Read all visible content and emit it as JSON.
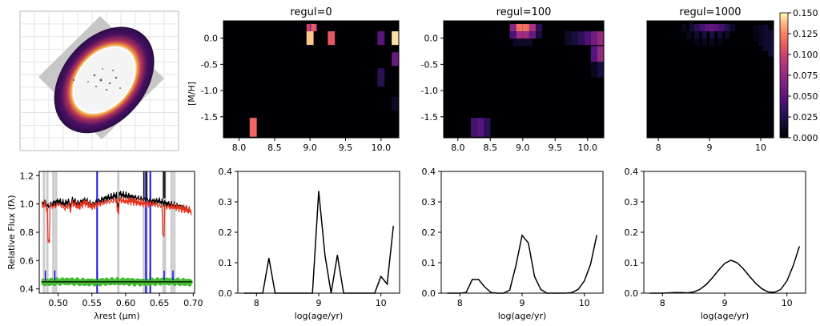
{
  "colors": {
    "sky": "#c9c9c9",
    "galaxy": "#ffffff",
    "ring_outer": "#2a0d45",
    "ring_mid": "#b1325a",
    "ring_inner": "#f6a23b",
    "data": "#000000",
    "model": "#e8321e",
    "residual": "#44bb33",
    "masked": "#1a12e0",
    "mask_band": "#cccccc"
  },
  "chart_data": [
    {
      "type": "image",
      "panel": "galaxy-image",
      "grid": true,
      "grid_lines": 11
    },
    {
      "type": "heatmap",
      "panel": "weights-regul-0",
      "title": "regul=0",
      "ylabel": "[M/H]",
      "xlim": [
        7.78,
        10.25
      ],
      "ylim": [
        -1.9,
        0.33
      ],
      "xticks": [
        "8.0",
        "8.5",
        "9.0",
        "9.5",
        "10.0"
      ],
      "yticks": [
        "0.0",
        "-0.5",
        "-1.0",
        "-1.5"
      ],
      "cells": [
        {
          "x": 9.0,
          "y": 0.2,
          "w": 0.1,
          "h": 0.14,
          "v": 0.095
        },
        {
          "x": 9.05,
          "y": 0.2,
          "w": 0.1,
          "h": 0.14,
          "v": 0.06
        },
        {
          "x": 9.05,
          "y": 0.2,
          "w": 0.07,
          "h": 0.14,
          "v": 0.112
        },
        {
          "x": 9.0,
          "y": 0.0,
          "w": 0.1,
          "h": 0.26,
          "v": 0.14
        },
        {
          "x": 9.3,
          "y": 0.0,
          "w": 0.1,
          "h": 0.26,
          "v": 0.11
        },
        {
          "x": 10.0,
          "y": 0.0,
          "w": 0.1,
          "h": 0.26,
          "v": 0.05
        },
        {
          "x": 10.2,
          "y": 0.0,
          "w": 0.1,
          "h": 0.26,
          "v": 0.145
        },
        {
          "x": 10.2,
          "y": -0.4,
          "w": 0.1,
          "h": 0.26,
          "v": 0.055
        },
        {
          "x": 10.0,
          "y": -0.75,
          "w": 0.1,
          "h": 0.35,
          "v": 0.028
        },
        {
          "x": 10.2,
          "y": -1.25,
          "w": 0.1,
          "h": 0.26,
          "v": 0.012
        },
        {
          "x": 8.2,
          "y": -1.7,
          "w": 0.1,
          "h": 0.36,
          "v": 0.115
        }
      ]
    },
    {
      "type": "heatmap",
      "panel": "weights-regul-100",
      "title": "regul=100",
      "xlim": [
        7.78,
        10.25
      ],
      "ylim": [
        -1.9,
        0.33
      ],
      "xticks": [
        "8.0",
        "8.5",
        "9.0",
        "9.5",
        "10.0"
      ],
      "yticks": [
        "0.0",
        "-0.5",
        "-1.0",
        "-1.5"
      ],
      "cells": [
        {
          "x": 8.85,
          "y": 0.2,
          "w": 0.1,
          "h": 0.14,
          "v": 0.07
        },
        {
          "x": 8.95,
          "y": 0.2,
          "w": 0.1,
          "h": 0.14,
          "v": 0.118
        },
        {
          "x": 9.05,
          "y": 0.2,
          "w": 0.1,
          "h": 0.14,
          "v": 0.118
        },
        {
          "x": 9.15,
          "y": 0.2,
          "w": 0.1,
          "h": 0.14,
          "v": 0.085
        },
        {
          "x": 9.25,
          "y": 0.2,
          "w": 0.1,
          "h": 0.14,
          "v": 0.03
        },
        {
          "x": 8.85,
          "y": 0.06,
          "w": 0.1,
          "h": 0.14,
          "v": 0.045
        },
        {
          "x": 8.95,
          "y": 0.06,
          "w": 0.1,
          "h": 0.14,
          "v": 0.08
        },
        {
          "x": 9.05,
          "y": 0.06,
          "w": 0.1,
          "h": 0.14,
          "v": 0.08
        },
        {
          "x": 9.15,
          "y": 0.06,
          "w": 0.1,
          "h": 0.14,
          "v": 0.055
        },
        {
          "x": 9.25,
          "y": 0.06,
          "w": 0.1,
          "h": 0.14,
          "v": 0.02
        },
        {
          "x": 9.0,
          "y": -0.08,
          "w": 0.3,
          "h": 0.14,
          "v": 0.012
        },
        {
          "x": 9.7,
          "y": 0.0,
          "w": 0.1,
          "h": 0.26,
          "v": 0.012
        },
        {
          "x": 9.8,
          "y": 0.0,
          "w": 0.1,
          "h": 0.26,
          "v": 0.02
        },
        {
          "x": 9.9,
          "y": 0.0,
          "w": 0.1,
          "h": 0.26,
          "v": 0.03
        },
        {
          "x": 10.0,
          "y": 0.0,
          "w": 0.1,
          "h": 0.26,
          "v": 0.045
        },
        {
          "x": 10.1,
          "y": 0.0,
          "w": 0.1,
          "h": 0.26,
          "v": 0.06
        },
        {
          "x": 10.2,
          "y": 0.0,
          "w": 0.1,
          "h": 0.26,
          "v": 0.075
        },
        {
          "x": 10.1,
          "y": -0.3,
          "w": 0.1,
          "h": 0.3,
          "v": 0.048
        },
        {
          "x": 10.2,
          "y": -0.3,
          "w": 0.1,
          "h": 0.3,
          "v": 0.075
        },
        {
          "x": 10.2,
          "y": -0.6,
          "w": 0.1,
          "h": 0.3,
          "v": 0.02
        },
        {
          "x": 10.1,
          "y": -0.6,
          "w": 0.1,
          "h": 0.3,
          "v": 0.01
        },
        {
          "x": 8.25,
          "y": -1.7,
          "w": 0.1,
          "h": 0.36,
          "v": 0.04
        },
        {
          "x": 8.35,
          "y": -1.7,
          "w": 0.1,
          "h": 0.36,
          "v": 0.05
        },
        {
          "x": 8.45,
          "y": -1.7,
          "w": 0.1,
          "h": 0.36,
          "v": 0.03
        }
      ]
    },
    {
      "type": "heatmap",
      "panel": "weights-regul-1000",
      "title": "regul=1000",
      "xlim": [
        7.78,
        10.25
      ],
      "ylim": [
        -1.9,
        0.33
      ],
      "xticks": [
        "8",
        "9",
        "10"
      ],
      "yticks": [],
      "cells": [
        {
          "x": 8.5,
          "y": 0.2,
          "w": 0.1,
          "h": 0.14,
          "v": 0.008
        },
        {
          "x": 8.65,
          "y": 0.2,
          "w": 0.1,
          "h": 0.14,
          "v": 0.016
        },
        {
          "x": 8.75,
          "y": 0.2,
          "w": 0.1,
          "h": 0.14,
          "v": 0.028
        },
        {
          "x": 8.85,
          "y": 0.2,
          "w": 0.1,
          "h": 0.14,
          "v": 0.04
        },
        {
          "x": 8.95,
          "y": 0.2,
          "w": 0.1,
          "h": 0.14,
          "v": 0.05
        },
        {
          "x": 9.05,
          "y": 0.2,
          "w": 0.1,
          "h": 0.14,
          "v": 0.052
        },
        {
          "x": 9.15,
          "y": 0.2,
          "w": 0.1,
          "h": 0.14,
          "v": 0.048
        },
        {
          "x": 9.25,
          "y": 0.2,
          "w": 0.1,
          "h": 0.14,
          "v": 0.038
        },
        {
          "x": 9.35,
          "y": 0.2,
          "w": 0.1,
          "h": 0.14,
          "v": 0.025
        },
        {
          "x": 9.45,
          "y": 0.2,
          "w": 0.1,
          "h": 0.14,
          "v": 0.012
        },
        {
          "x": 8.6,
          "y": 0.06,
          "w": 0.1,
          "h": 0.14,
          "v": 0.008
        },
        {
          "x": 8.75,
          "y": 0.06,
          "w": 0.1,
          "h": 0.14,
          "v": 0.015
        },
        {
          "x": 8.9,
          "y": 0.06,
          "w": 0.1,
          "h": 0.14,
          "v": 0.02
        },
        {
          "x": 9.05,
          "y": 0.06,
          "w": 0.1,
          "h": 0.14,
          "v": 0.022
        },
        {
          "x": 9.2,
          "y": 0.06,
          "w": 0.1,
          "h": 0.14,
          "v": 0.018
        },
        {
          "x": 9.35,
          "y": 0.06,
          "w": 0.1,
          "h": 0.14,
          "v": 0.012
        },
        {
          "x": 8.75,
          "y": -0.08,
          "w": 0.1,
          "h": 0.14,
          "v": 0.006
        },
        {
          "x": 8.9,
          "y": -0.08,
          "w": 0.1,
          "h": 0.14,
          "v": 0.009
        },
        {
          "x": 9.05,
          "y": -0.08,
          "w": 0.1,
          "h": 0.14,
          "v": 0.009
        },
        {
          "x": 9.2,
          "y": -0.08,
          "w": 0.1,
          "h": 0.14,
          "v": 0.006
        },
        {
          "x": 9.9,
          "y": 0.1,
          "w": 0.1,
          "h": 0.3,
          "v": 0.006
        },
        {
          "x": 10.0,
          "y": 0.05,
          "w": 0.1,
          "h": 0.4,
          "v": 0.01
        },
        {
          "x": 10.1,
          "y": 0.0,
          "w": 0.1,
          "h": 0.5,
          "v": 0.014
        },
        {
          "x": 10.2,
          "y": -0.1,
          "w": 0.1,
          "h": 0.5,
          "v": 0.018
        }
      ],
      "colorbar": {
        "range": [
          0.0,
          0.15
        ],
        "ticks": [
          "0.000",
          "0.025",
          "0.050",
          "0.075",
          "0.100",
          "0.125",
          "0.150"
        ]
      }
    },
    {
      "type": "line",
      "panel": "spectrum",
      "xlabel": "λrest (µm)",
      "ylabel": "Relative Flux (fλ)",
      "xlim": [
        0.472,
        0.702
      ],
      "ylim": [
        0.37,
        1.23
      ],
      "xticks": [
        "0.50",
        "0.55",
        "0.60",
        "0.65",
        "0.70"
      ],
      "yticks": [
        "0.4",
        "0.6",
        "0.8",
        "1.0",
        "1.2"
      ],
      "mask_bands": [
        0.479,
        0.484,
        0.493,
        0.497,
        0.589,
        0.627,
        0.631,
        0.656,
        0.658,
        0.668,
        0.672
      ],
      "masked_lines": [
        0.5577,
        0.63,
        0.6364
      ],
      "series": [
        {
          "key": "data",
          "points": [
            [
              0.475,
              1.0
            ],
            [
              0.48,
              1.02
            ],
            [
              0.485,
              0.98
            ],
            [
              0.49,
              1.0
            ],
            [
              0.495,
              1.01
            ],
            [
              0.5,
              1.02
            ],
            [
              0.51,
              1.0
            ],
            [
              0.52,
              1.03
            ],
            [
              0.53,
              1.0
            ],
            [
              0.54,
              1.03
            ],
            [
              0.55,
              1.0
            ],
            [
              0.56,
              1.02
            ],
            [
              0.57,
              1.04
            ],
            [
              0.58,
              1.05
            ],
            [
              0.59,
              1.07
            ],
            [
              0.6,
              1.06
            ],
            [
              0.61,
              1.05
            ],
            [
              0.62,
              1.04
            ],
            [
              0.63,
              1.03
            ],
            [
              0.64,
              1.02
            ],
            [
              0.65,
              1.02
            ],
            [
              0.66,
              1.0
            ],
            [
              0.67,
              0.99
            ],
            [
              0.68,
              0.98
            ],
            [
              0.69,
              0.97
            ],
            [
              0.697,
              0.95
            ]
          ]
        },
        {
          "key": "model",
          "points": [
            [
              0.475,
              0.98
            ],
            [
              0.48,
              1.0
            ],
            [
              0.485,
              0.95
            ],
            [
              0.49,
              0.99
            ],
            [
              0.495,
              0.98
            ],
            [
              0.5,
              1.0
            ],
            [
              0.51,
              0.97
            ],
            [
              0.52,
              1.01
            ],
            [
              0.53,
              0.98
            ],
            [
              0.54,
              1.01
            ],
            [
              0.55,
              0.98
            ],
            [
              0.56,
              1.0
            ],
            [
              0.57,
              1.01
            ],
            [
              0.58,
              1.02
            ],
            [
              0.59,
              1.03
            ],
            [
              0.6,
              1.02
            ],
            [
              0.61,
              1.02
            ],
            [
              0.62,
              1.01
            ],
            [
              0.63,
              1.0
            ],
            [
              0.64,
              1.0
            ],
            [
              0.65,
              0.99
            ],
            [
              0.66,
              0.98
            ],
            [
              0.67,
              0.98
            ],
            [
              0.68,
              0.97
            ],
            [
              0.69,
              0.96
            ],
            [
              0.697,
              0.95
            ]
          ]
        },
        {
          "key": "residual",
          "points": [
            [
              0.475,
              0.46
            ],
            [
              0.5,
              0.45
            ],
            [
              0.55,
              0.45
            ],
            [
              0.6,
              0.46
            ],
            [
              0.65,
              0.45
            ],
            [
              0.697,
              0.46
            ]
          ]
        }
      ],
      "hline": 0.45
    },
    {
      "type": "line",
      "panel": "mass-fraction-regul-0",
      "xlabel": "log(age/yr)",
      "xlim": [
        7.7,
        10.3
      ],
      "ylim": [
        0.0,
        0.4
      ],
      "xticks": [
        8,
        9,
        10
      ],
      "yticks": [
        "0.0",
        "0.1",
        "0.2",
        "0.3",
        "0.4"
      ],
      "x": [
        7.8,
        7.9,
        8.0,
        8.1,
        8.2,
        8.3,
        8.4,
        8.5,
        8.6,
        8.7,
        8.8,
        8.9,
        9.0,
        9.1,
        9.2,
        9.3,
        9.4,
        9.5,
        9.6,
        9.7,
        9.8,
        9.9,
        10.0,
        10.1,
        10.2
      ],
      "y": [
        0,
        0,
        0,
        0,
        0.115,
        0,
        0,
        0,
        0,
        0,
        0,
        0,
        0.335,
        0.125,
        0,
        0.125,
        0,
        0,
        0,
        0,
        0,
        0,
        0.055,
        0.03,
        0.22
      ]
    },
    {
      "type": "line",
      "panel": "mass-fraction-regul-100",
      "xlabel": "log(age/yr)",
      "xlim": [
        7.7,
        10.3
      ],
      "ylim": [
        0.0,
        0.4
      ],
      "xticks": [
        8,
        9,
        10
      ],
      "yticks": [
        "0.0",
        "0.1",
        "0.2",
        "0.3",
        "0.4"
      ],
      "x": [
        7.8,
        7.9,
        8.0,
        8.1,
        8.2,
        8.3,
        8.4,
        8.5,
        8.6,
        8.7,
        8.8,
        8.9,
        9.0,
        9.1,
        9.2,
        9.3,
        9.4,
        9.5,
        9.6,
        9.7,
        9.8,
        9.9,
        10.0,
        10.1,
        10.2
      ],
      "y": [
        0,
        0,
        0,
        0.002,
        0.045,
        0.045,
        0.02,
        0.002,
        0,
        0,
        0.01,
        0.09,
        0.19,
        0.165,
        0.055,
        0.012,
        0,
        0,
        0,
        0,
        0.002,
        0.012,
        0.04,
        0.095,
        0.19
      ]
    },
    {
      "type": "line",
      "panel": "mass-fraction-regul-1000",
      "xlabel": "log(age/yr)",
      "xlim": [
        7.7,
        10.3
      ],
      "ylim": [
        0.0,
        0.4
      ],
      "xticks": [
        8,
        9,
        10
      ],
      "yticks": [
        "0.0",
        "0.1",
        "0.2",
        "0.3",
        "0.4"
      ],
      "x": [
        7.8,
        7.9,
        8.0,
        8.1,
        8.2,
        8.3,
        8.4,
        8.5,
        8.6,
        8.7,
        8.8,
        8.9,
        9.0,
        9.1,
        9.2,
        9.3,
        9.4,
        9.5,
        9.6,
        9.7,
        9.8,
        9.9,
        10.0,
        10.1,
        10.2
      ],
      "y": [
        0,
        0,
        0,
        0.001,
        0.002,
        0.002,
        0.001,
        0.004,
        0.012,
        0.028,
        0.05,
        0.075,
        0.098,
        0.108,
        0.1,
        0.08,
        0.055,
        0.032,
        0.014,
        0.004,
        0.003,
        0.012,
        0.04,
        0.09,
        0.153
      ]
    }
  ]
}
